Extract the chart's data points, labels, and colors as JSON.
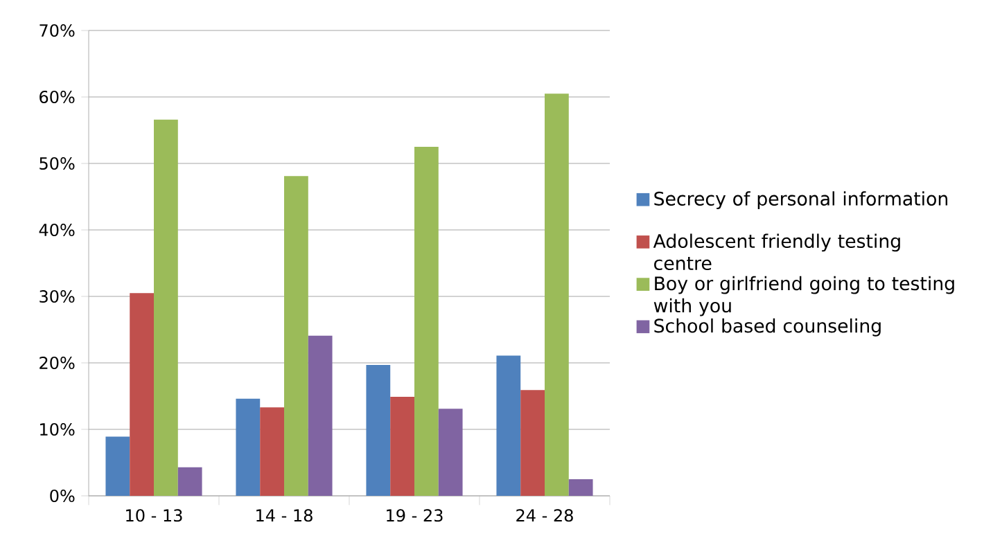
{
  "chart_data": {
    "type": "bar",
    "categories": [
      "10 - 13",
      "14 - 18",
      "19 - 23",
      "24 - 28"
    ],
    "series": [
      {
        "name": "Secrecy of personal information",
        "color": "#4f81bd",
        "values": [
          8.9,
          14.6,
          19.7,
          21.1
        ]
      },
      {
        "name": "Adolescent friendly testing centre",
        "color": "#c0504d",
        "values": [
          30.5,
          13.3,
          14.9,
          15.9
        ]
      },
      {
        "name": "Boy or girlfriend going to testing with you",
        "color": "#9bbb59",
        "values": [
          56.6,
          48.1,
          52.5,
          60.5
        ]
      },
      {
        "name": "School based counseling",
        "color": "#8064a2",
        "values": [
          4.3,
          24.1,
          13.1,
          2.5
        ]
      }
    ],
    "ylim": [
      0,
      70
    ],
    "yticks": [
      {
        "value": 0,
        "label": "0%"
      },
      {
        "value": 10,
        "label": "10%"
      },
      {
        "value": 20,
        "label": "20%"
      },
      {
        "value": 30,
        "label": "30%"
      },
      {
        "value": 40,
        "label": "40%"
      },
      {
        "value": 50,
        "label": "50%"
      },
      {
        "value": 60,
        "label": "60%"
      },
      {
        "value": 70,
        "label": "70%"
      }
    ],
    "grid": "y",
    "legend": "right"
  }
}
